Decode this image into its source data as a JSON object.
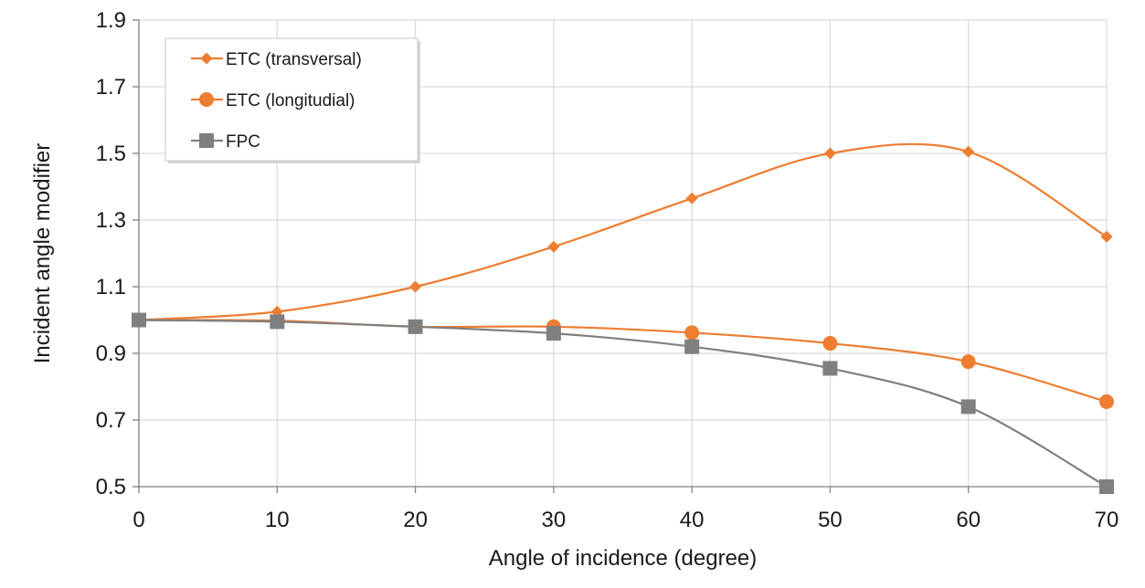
{
  "chart_data": {
    "type": "line",
    "title": "",
    "xlabel": "Angle of incidence (degree)",
    "ylabel": "Incident angle modifier",
    "xlim": [
      0,
      70
    ],
    "ylim": [
      0.5,
      1.9
    ],
    "x": [
      0,
      10,
      20,
      30,
      40,
      50,
      60,
      70
    ],
    "x_ticks": [
      "0",
      "10",
      "20",
      "30",
      "40",
      "50",
      "60",
      "70"
    ],
    "y_ticks": [
      "0.5",
      "0.7",
      "0.9",
      "1.1",
      "1.3",
      "1.5",
      "1.7",
      "1.9"
    ],
    "grid": true,
    "smooth": true,
    "legend_position": "top-left",
    "series": [
      {
        "name": "ETC (transversal)",
        "marker": "diamond",
        "color": "#ed7d31",
        "values": [
          1.0,
          1.025,
          1.1,
          1.22,
          1.365,
          1.5,
          1.505,
          1.25
        ]
      },
      {
        "name": "ETC (longitudial)",
        "marker": "circle",
        "color": "#ed7d31",
        "values": [
          1.0,
          0.998,
          0.98,
          0.98,
          0.962,
          0.93,
          0.875,
          0.755
        ]
      },
      {
        "name": "FPC",
        "marker": "square",
        "color": "#7f7f7f",
        "values": [
          1.0,
          0.995,
          0.98,
          0.96,
          0.92,
          0.855,
          0.74,
          0.5
        ]
      }
    ]
  }
}
